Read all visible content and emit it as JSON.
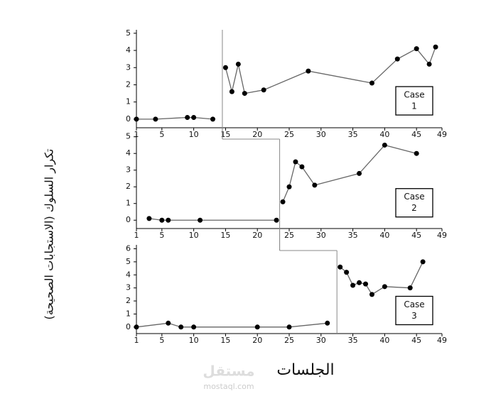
{
  "chart_data": [
    {
      "type": "line",
      "annotations": [
        "Case",
        "1"
      ],
      "x": [
        1,
        4,
        9,
        10,
        13,
        15,
        16,
        17,
        18,
        21,
        28,
        38,
        42,
        45,
        47,
        48
      ],
      "values": [
        0,
        0,
        0.1,
        0.1,
        0,
        3,
        1.6,
        3.2,
        1.5,
        1.7,
        2.8,
        2.1,
        3.5,
        4.1,
        3.2,
        4.2
      ],
      "phase_change": 14.5,
      "xlim": [
        1,
        49
      ],
      "ylim": [
        -0.5,
        5.2
      ],
      "xticks": [
        1,
        5,
        10,
        15,
        20,
        25,
        30,
        35,
        40,
        45,
        49
      ],
      "yticks": [
        0,
        1,
        2,
        3,
        4,
        5
      ],
      "color": "#000000",
      "line_color": "#666666"
    },
    {
      "type": "line",
      "annotations": [
        "Case",
        "2"
      ],
      "x": [
        3,
        5,
        6,
        11,
        23,
        24,
        25,
        26,
        27,
        29,
        36,
        40,
        45
      ],
      "values": [
        0.1,
        0,
        0,
        0,
        0,
        1.1,
        2,
        3.5,
        3.2,
        2.1,
        2.8,
        4.5,
        4
      ],
      "phase_change": 23.5,
      "xlim": [
        1,
        49
      ],
      "ylim": [
        -0.5,
        5.2
      ],
      "xticks": [
        1,
        5,
        10,
        15,
        20,
        25,
        30,
        35,
        40,
        45,
        49
      ],
      "yticks": [
        0,
        1,
        2,
        3,
        4,
        5
      ],
      "color": "#000000",
      "line_color": "#666666"
    },
    {
      "type": "line",
      "annotations": [
        "Case",
        "3"
      ],
      "x": [
        1,
        6,
        8,
        10,
        20,
        25,
        31,
        33,
        34,
        35,
        36,
        37,
        38,
        40,
        44,
        46
      ],
      "values": [
        0,
        0.3,
        0,
        0,
        0,
        0,
        0.3,
        4.6,
        4.2,
        3.2,
        3.4,
        3.3,
        2.5,
        3.1,
        3,
        5
      ],
      "phase_change": 32.5,
      "xlim": [
        1,
        49
      ],
      "ylim": [
        -0.5,
        6.3
      ],
      "xticks": [
        1,
        5,
        10,
        15,
        20,
        25,
        30,
        35,
        40,
        45,
        49
      ],
      "yticks": [
        0,
        1,
        2,
        3,
        4,
        5,
        6
      ],
      "color": "#000000",
      "line_color": "#666666"
    }
  ],
  "x_label": "الجلسات",
  "y_label": "تكرار السلوك (الاستجابات الصحيحة)",
  "watermark": [
    "مستقل",
    "mostaql.com"
  ]
}
